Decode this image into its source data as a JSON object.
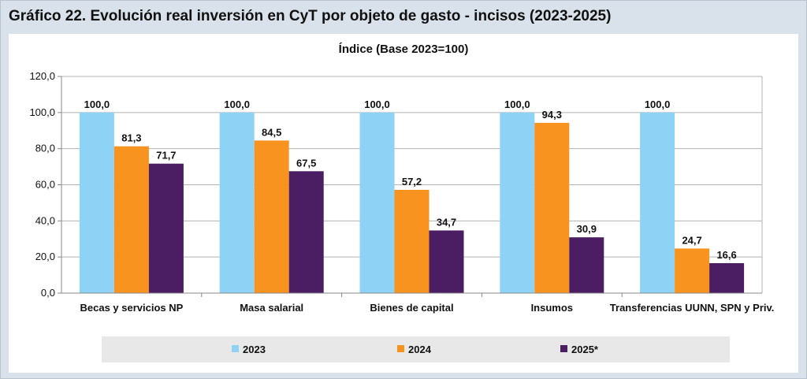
{
  "header": {
    "title": "Gráfico 22. Evolución real inversión en CyT por objeto de gasto - incisos (2023-2025)"
  },
  "chart_data": {
    "type": "bar",
    "subtitle": "Índice (Base 2023=100)",
    "categories": [
      "Becas y servicios NP",
      "Masa salarial",
      "Bienes de capital",
      "Insumos",
      "Transferencias UUNN, SPN y Priv."
    ],
    "series": [
      {
        "name": "2023",
        "color": "#8ed3f5",
        "values": [
          100.0,
          100.0,
          100.0,
          100.0,
          100.0
        ],
        "labels": [
          "100,0",
          "100,0",
          "100,0",
          "100,0",
          "100,0"
        ]
      },
      {
        "name": "2024",
        "color": "#f7931e",
        "values": [
          81.3,
          84.5,
          57.2,
          94.3,
          24.7
        ],
        "labels": [
          "81,3",
          "84,5",
          "57,2",
          "94,3",
          "24,7"
        ]
      },
      {
        "name": "2025*",
        "color": "#4b1d63",
        "values": [
          71.7,
          67.5,
          34.7,
          30.9,
          16.6
        ],
        "labels": [
          "71,7",
          "67,5",
          "34,7",
          "30,9",
          "16,6"
        ]
      }
    ],
    "yticks": [
      "0,0",
      "20,0",
      "40,0",
      "60,0",
      "80,0",
      "100,0",
      "120,0"
    ],
    "ylim": [
      0,
      120
    ],
    "grid": true,
    "legend": "bottom"
  }
}
